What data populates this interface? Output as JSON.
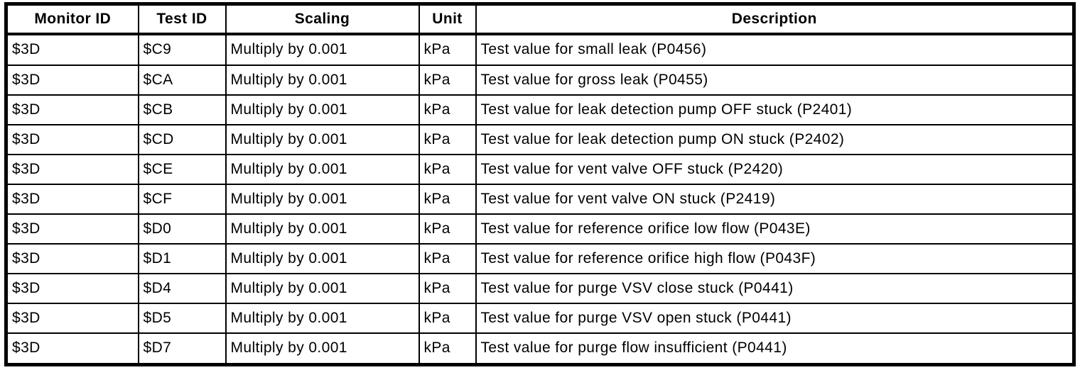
{
  "table": {
    "columns": [
      {
        "key": "monitor_id",
        "label": "Monitor ID"
      },
      {
        "key": "test_id",
        "label": "Test ID"
      },
      {
        "key": "scaling",
        "label": "Scaling"
      },
      {
        "key": "unit",
        "label": "Unit"
      },
      {
        "key": "description",
        "label": "Description"
      }
    ],
    "rows": [
      {
        "monitor_id": "$3D",
        "test_id": "$C9",
        "scaling": "Multiply by 0.001",
        "unit": "kPa",
        "description": "Test value for small leak (P0456)"
      },
      {
        "monitor_id": "$3D",
        "test_id": "$CA",
        "scaling": "Multiply by 0.001",
        "unit": "kPa",
        "description": "Test value for gross leak (P0455)"
      },
      {
        "monitor_id": "$3D",
        "test_id": "$CB",
        "scaling": "Multiply by 0.001",
        "unit": "kPa",
        "description": "Test value for leak detection pump OFF stuck (P2401)"
      },
      {
        "monitor_id": "$3D",
        "test_id": "$CD",
        "scaling": "Multiply by 0.001",
        "unit": "kPa",
        "description": "Test value for leak detection pump ON stuck (P2402)"
      },
      {
        "monitor_id": "$3D",
        "test_id": "$CE",
        "scaling": "Multiply by 0.001",
        "unit": "kPa",
        "description": "Test value for vent valve OFF stuck (P2420)"
      },
      {
        "monitor_id": "$3D",
        "test_id": "$CF",
        "scaling": "Multiply by 0.001",
        "unit": "kPa",
        "description": "Test value for vent valve ON stuck (P2419)"
      },
      {
        "monitor_id": "$3D",
        "test_id": "$D0",
        "scaling": "Multiply by 0.001",
        "unit": "kPa",
        "description": "Test value for reference orifice low flow (P043E)"
      },
      {
        "monitor_id": "$3D",
        "test_id": "$D1",
        "scaling": "Multiply by 0.001",
        "unit": "kPa",
        "description": "Test value for reference orifice high flow (P043F)"
      },
      {
        "monitor_id": "$3D",
        "test_id": "$D4",
        "scaling": "Multiply by 0.001",
        "unit": "kPa",
        "description": "Test value for purge VSV close stuck (P0441)"
      },
      {
        "monitor_id": "$3D",
        "test_id": "$D5",
        "scaling": "Multiply by 0.001",
        "unit": "kPa",
        "description": "Test value for purge VSV open stuck (P0441)"
      },
      {
        "monitor_id": "$3D",
        "test_id": "$D7",
        "scaling": "Multiply by 0.001",
        "unit": "kPa",
        "description": "Test value for purge flow insufficient (P0441)"
      }
    ],
    "colors": {
      "text": "#000000",
      "background": "#ffffff",
      "border": "#000000"
    }
  }
}
